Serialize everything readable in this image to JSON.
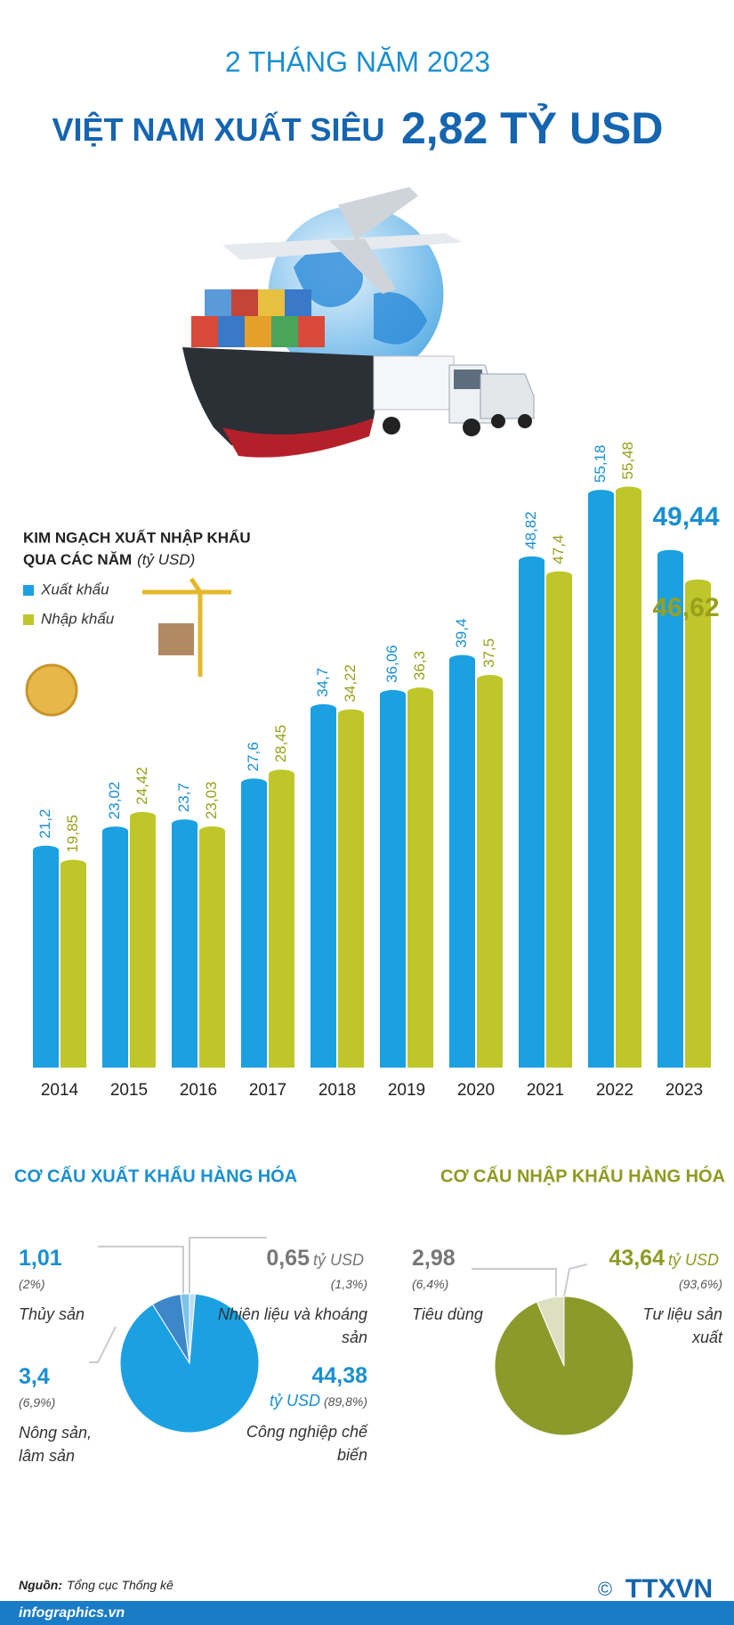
{
  "header": {
    "subtitle": "2 THÁNG NĂM 2023",
    "title": "VIỆT NAM XUẤT SIÊU",
    "highlight": "2,82 TỶ USD"
  },
  "chart_data": [
    {
      "type": "bar",
      "title": "KIM NGẠCH XUẤT NHẬP KHẨU",
      "title2": "QUA CÁC NĂM",
      "unit": "(tỷ USD)",
      "categories": [
        "2014",
        "2015",
        "2016",
        "2017",
        "2018",
        "2019",
        "2020",
        "2021",
        "2022",
        "2023"
      ],
      "series": [
        {
          "name": "Xuất khẩu",
          "color": "#1ba1e2",
          "label_color": "#1a8fd0",
          "values": [
            21.2,
            23.02,
            23.7,
            27.6,
            34.7,
            36.06,
            39.4,
            48.82,
            55.18,
            49.44
          ],
          "value_labels": [
            "21,2",
            "23,02",
            "23,7",
            "27,6",
            "34,7",
            "36,06",
            "39,4",
            "48,82",
            "55,18",
            "49,44"
          ]
        },
        {
          "name": "Nhập khẩu",
          "color": "#bfc62a",
          "label_color": "#98a01c",
          "values": [
            19.85,
            24.42,
            23.03,
            28.45,
            34.22,
            36.3,
            37.5,
            47.4,
            55.48,
            46.62
          ],
          "value_labels": [
            "19,85",
            "24,42",
            "23,03",
            "28,45",
            "34,22",
            "36,3",
            "37,5",
            "47,4",
            "55,48",
            "46,62"
          ]
        }
      ]
    },
    {
      "type": "pie",
      "title": "CƠ CẤU XUẤT KHẨU HÀNG HÓA",
      "unit": "tỷ USD",
      "title_color": "#1a8fd0",
      "categories": [
        "Nhiên liệu và khoáng sản",
        "Công nghiệp chế biến",
        "Nông sản, lâm sản",
        "Thủy sản"
      ],
      "values": [
        0.65,
        44.38,
        3.4,
        1.01
      ],
      "value_labels": [
        "0,65",
        "44,38",
        "3,4",
        "1,01"
      ],
      "shares": [
        1.3,
        89.8,
        6.9,
        2
      ],
      "share_labels": [
        "(1,3%)",
        "(89,8%)",
        "(6,9%)",
        "(2%)"
      ],
      "colors": [
        "#b9def3",
        "#1ba1e2",
        "#3d86c8",
        "#7cc3ec"
      ]
    },
    {
      "type": "pie",
      "title": "CƠ CẤU NHẬP KHẨU HÀNG HÓA",
      "unit": "tỷ USD",
      "title_color": "#8e9a22",
      "categories": [
        "Tư liệu sản xuất",
        "Tiêu dùng"
      ],
      "values": [
        43.64,
        2.98
      ],
      "value_labels": [
        "43,64",
        "2,98"
      ],
      "shares": [
        93.6,
        6.4
      ],
      "share_labels": [
        "(93,6%)",
        "(6,4%)"
      ],
      "colors": [
        "#8c9a2c",
        "#dde0c0"
      ]
    }
  ],
  "source": {
    "label": "Nguồn:",
    "text": "Tổng cục Thống kê"
  },
  "site": "infographics.vn",
  "copyright": "©",
  "credit": "TTXVN"
}
